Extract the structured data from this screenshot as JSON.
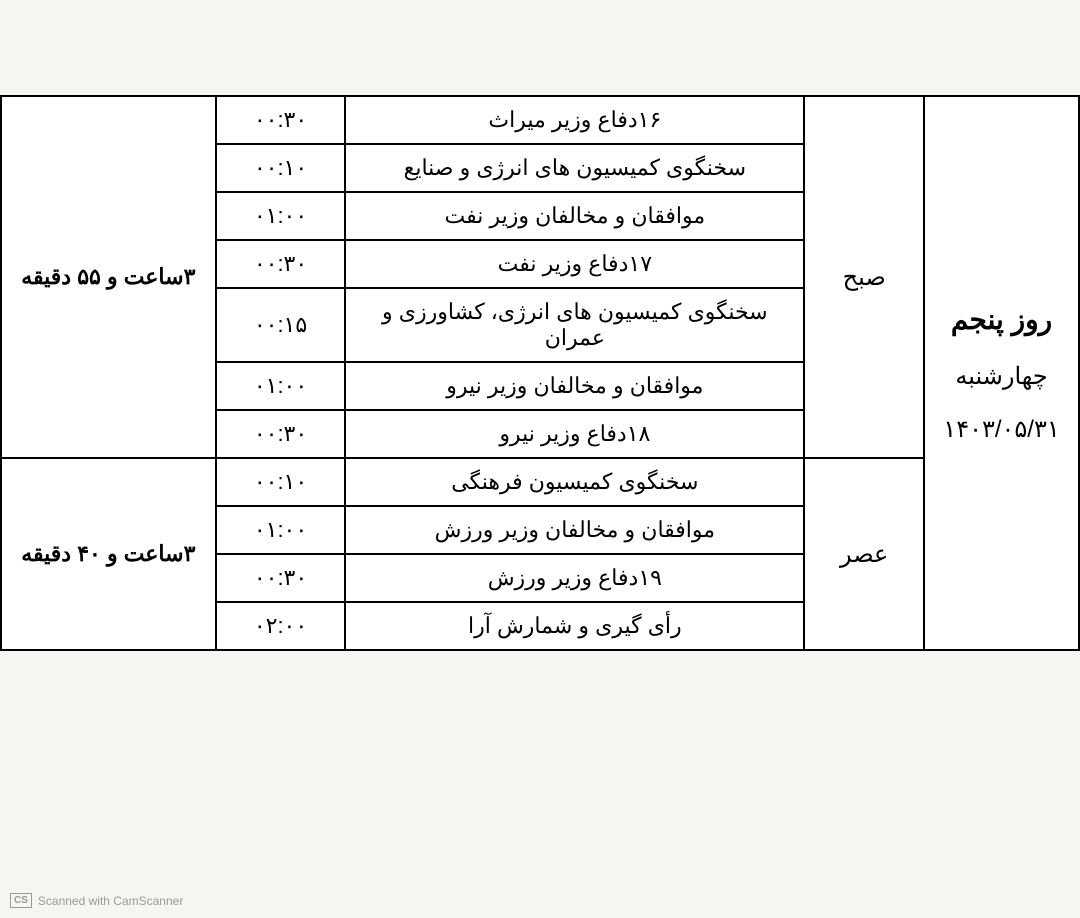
{
  "schedule": {
    "day": {
      "title": "روز پنجم",
      "weekday": "چهارشنبه",
      "date": "۱۴۰۳/۰۵/۳۱"
    },
    "sessions": [
      {
        "name": "صبح",
        "total": "۳ساعت و ۵۵ دقیقه",
        "rows": [
          {
            "desc": "۱۶دفاع وزیر میراث",
            "time": "۰۰:۳۰"
          },
          {
            "desc": "سخنگوی کمیسیون های انرژی و صنایع",
            "time": "۰۰:۱۰"
          },
          {
            "desc": "موافقان و مخالفان وزیر نفت",
            "time": "۰۱:۰۰"
          },
          {
            "desc": "۱۷دفاع وزیر نفت",
            "time": "۰۰:۳۰"
          },
          {
            "desc": "سخنگوی کمیسیون های انرژی، کشاورزی و عمران",
            "time": "۰۰:۱۵"
          },
          {
            "desc": "موافقان و مخالفان وزیر نیرو",
            "time": "۰۱:۰۰"
          },
          {
            "desc": "۱۸دفاع وزیر نیرو",
            "time": "۰۰:۳۰"
          }
        ]
      },
      {
        "name": "عصر",
        "total": "۳ساعت و ۴۰ دقیقه",
        "rows": [
          {
            "desc": "سخنگوی کمیسیون فرهنگی",
            "time": "۰۰:۱۰"
          },
          {
            "desc": "موافقان و مخالفان وزیر ورزش",
            "time": "۰۱:۰۰"
          },
          {
            "desc": "۱۹دفاع وزیر ورزش",
            "time": "۰۰:۳۰"
          },
          {
            "desc": "رأی گیری و شمارش آرا",
            "time": "۰۲:۰۰"
          }
        ]
      }
    ]
  },
  "watermark": {
    "badge": "CS",
    "text": "Scanned with CamScanner"
  },
  "style": {
    "background_color": "#f5f5f2",
    "border_color": "#000000",
    "text_color": "#000000",
    "watermark_color": "#999999",
    "border_width": 2,
    "font_size_cell": 22,
    "font_size_day_title": 28,
    "font_size_session": 24,
    "columns": {
      "day_width": 155,
      "session_width": 120,
      "desc_width": 460,
      "time_width": 130,
      "total_width": 215
    }
  }
}
